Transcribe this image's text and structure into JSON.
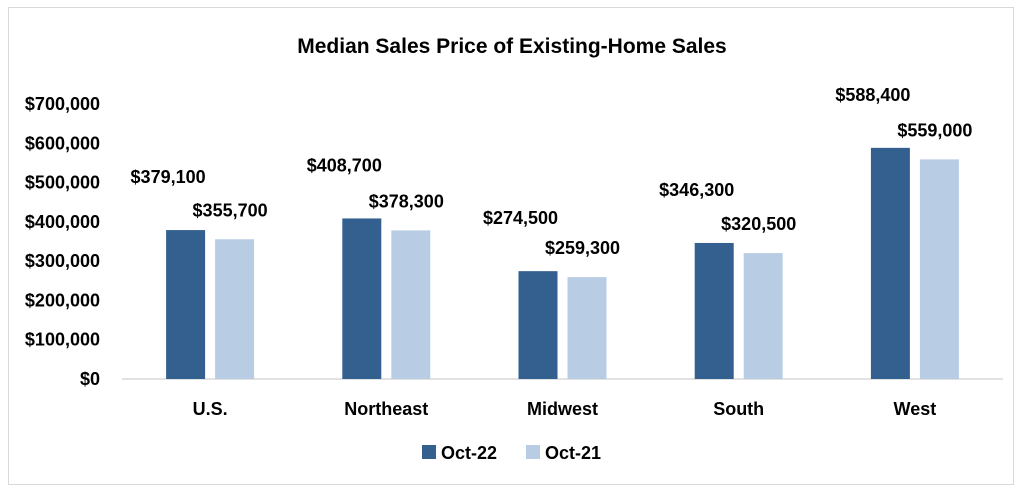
{
  "chart_data": {
    "type": "bar",
    "title": "Median Sales Price of Existing-Home Sales",
    "xlabel": "",
    "ylabel": "",
    "categories": [
      "U.S.",
      "Northeast",
      "Midwest",
      "South",
      "West"
    ],
    "series": [
      {
        "name": "Oct-22",
        "color": "#34608f",
        "values": [
          379100,
          408700,
          274500,
          346300,
          588400
        ],
        "labels": [
          "$379,100",
          "$408,700",
          "$274,500",
          "$346,300",
          "$588,400"
        ]
      },
      {
        "name": "Oct-21",
        "color": "#b8cce4",
        "values": [
          355700,
          378300,
          259300,
          320500,
          559000
        ],
        "labels": [
          "$355,700",
          "$378,300",
          "$259,300",
          "$320,500",
          "$559,000"
        ]
      }
    ],
    "ylim": [
      0,
      700000
    ],
    "yticks": [
      0,
      100000,
      200000,
      300000,
      400000,
      500000,
      600000,
      700000
    ],
    "ytick_labels": [
      "$0",
      "$100,000",
      "$200,000",
      "$300,000",
      "$400,000",
      "$500,000",
      "$600,000",
      "$700,000"
    ],
    "grid": false,
    "legend": "bottom-center"
  }
}
